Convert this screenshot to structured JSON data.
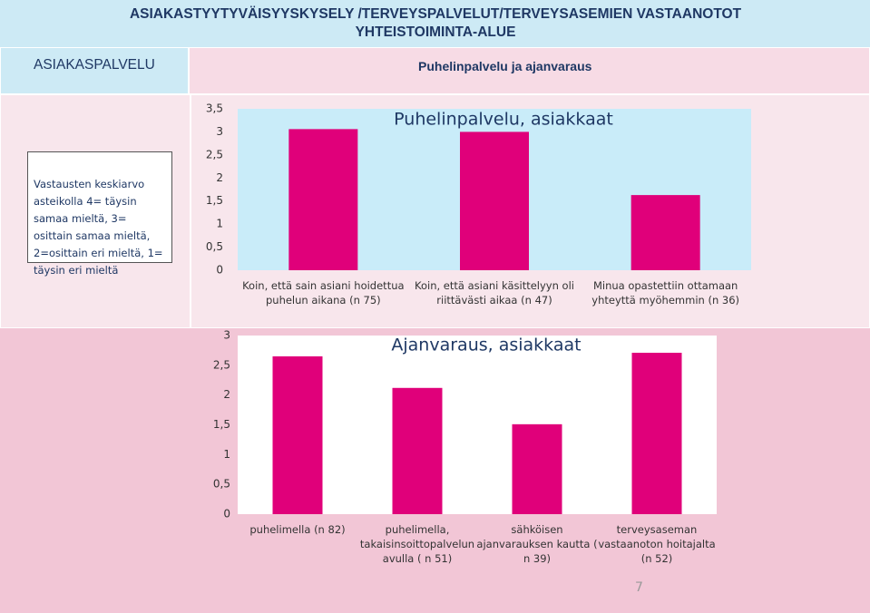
{
  "header": {
    "title": "ASIAKASTYYTYVÄISYYSKYSELY /TERVEYSPALVELUT/TERVEYSASEMIEN VASTAANOTOT YHTEISTOIMINTA-ALUE",
    "section": "ASIAKASPALVELU",
    "subtitle": "Puhelinpalvelu ja ajanvaraus"
  },
  "note": "Vastausten keskiarvo asteikolla 4= täysin samaa mieltä, 3= osittain samaa mieltä, 2=osittain eri mieltä, 1= täysin eri mieltä",
  "page_number": "7",
  "chart_data": [
    {
      "type": "bar",
      "title": "Puhelinpalvelu, asiakkaat",
      "categories": [
        "Koin, että sain asiani hoidettua puhelun aikana (n 75)",
        "Koin, että asiani käsittelyyn oli riittävästi aikaa (n 47)",
        "Minua opastettiin ottamaan yhteyttä myöhemmin (n 36)"
      ],
      "values": [
        3.06,
        3.0,
        1.63
      ],
      "color": "#e0007a",
      "ylim": [
        0,
        3.5
      ],
      "yticks": [
        0,
        {
          "value": 0.5,
          "label": "0,5"
        },
        1,
        {
          "value": 1.5,
          "label": "1,5"
        },
        2,
        {
          "value": 2.5,
          "label": "2,5"
        },
        3,
        {
          "value": 3.5,
          "label": "3,5"
        }
      ],
      "grid": false
    },
    {
      "type": "bar",
      "title": "Ajanvaraus, asiakkaat",
      "categories": [
        "puhelimella (n 82)",
        "puhelimella, takaisinsoittopalvelun avulla ( n 51)",
        "sähköisen ajanvarauksen kautta ( n 39)",
        "terveysaseman vastaanoton hoitajalta (n 52)"
      ],
      "values": [
        2.65,
        2.12,
        1.51,
        2.71
      ],
      "color": "#e0007a",
      "ylim": [
        0,
        3
      ],
      "yticks": [
        0,
        {
          "value": 0.5,
          "label": "0,5"
        },
        1,
        {
          "value": 1.5,
          "label": "1,5"
        },
        2,
        {
          "value": 2.5,
          "label": "2,5"
        },
        3
      ],
      "grid": false
    }
  ]
}
